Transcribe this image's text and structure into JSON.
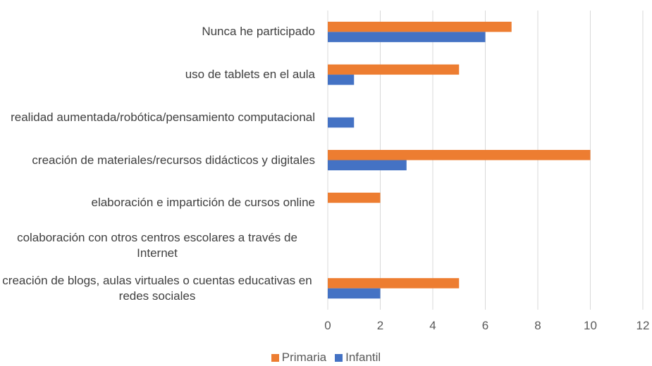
{
  "chart_data": {
    "type": "bar",
    "orientation": "horizontal",
    "categories": [
      "Nunca he participado",
      "uso de tablets en el aula",
      "realidad aumentada/robótica/pensamiento computacional",
      "creación de materiales/recursos didácticos y digitales",
      "elaboración e impartición de cursos online",
      "colaboración con otros centros escolares a través de Internet",
      "creación de blogs, aulas virtuales o cuentas educativas en redes sociales"
    ],
    "series": [
      {
        "name": "Primaria",
        "color": "#ed7d31",
        "values": [
          7,
          5,
          0,
          10,
          2,
          0,
          5
        ]
      },
      {
        "name": "Infantil",
        "color": "#4472c4",
        "values": [
          6,
          1,
          1,
          3,
          0,
          0,
          2
        ]
      }
    ],
    "xlim": [
      0,
      12
    ],
    "xticks": [
      0,
      2,
      4,
      6,
      8,
      10,
      12
    ],
    "grid": true,
    "legend": "bottom"
  }
}
